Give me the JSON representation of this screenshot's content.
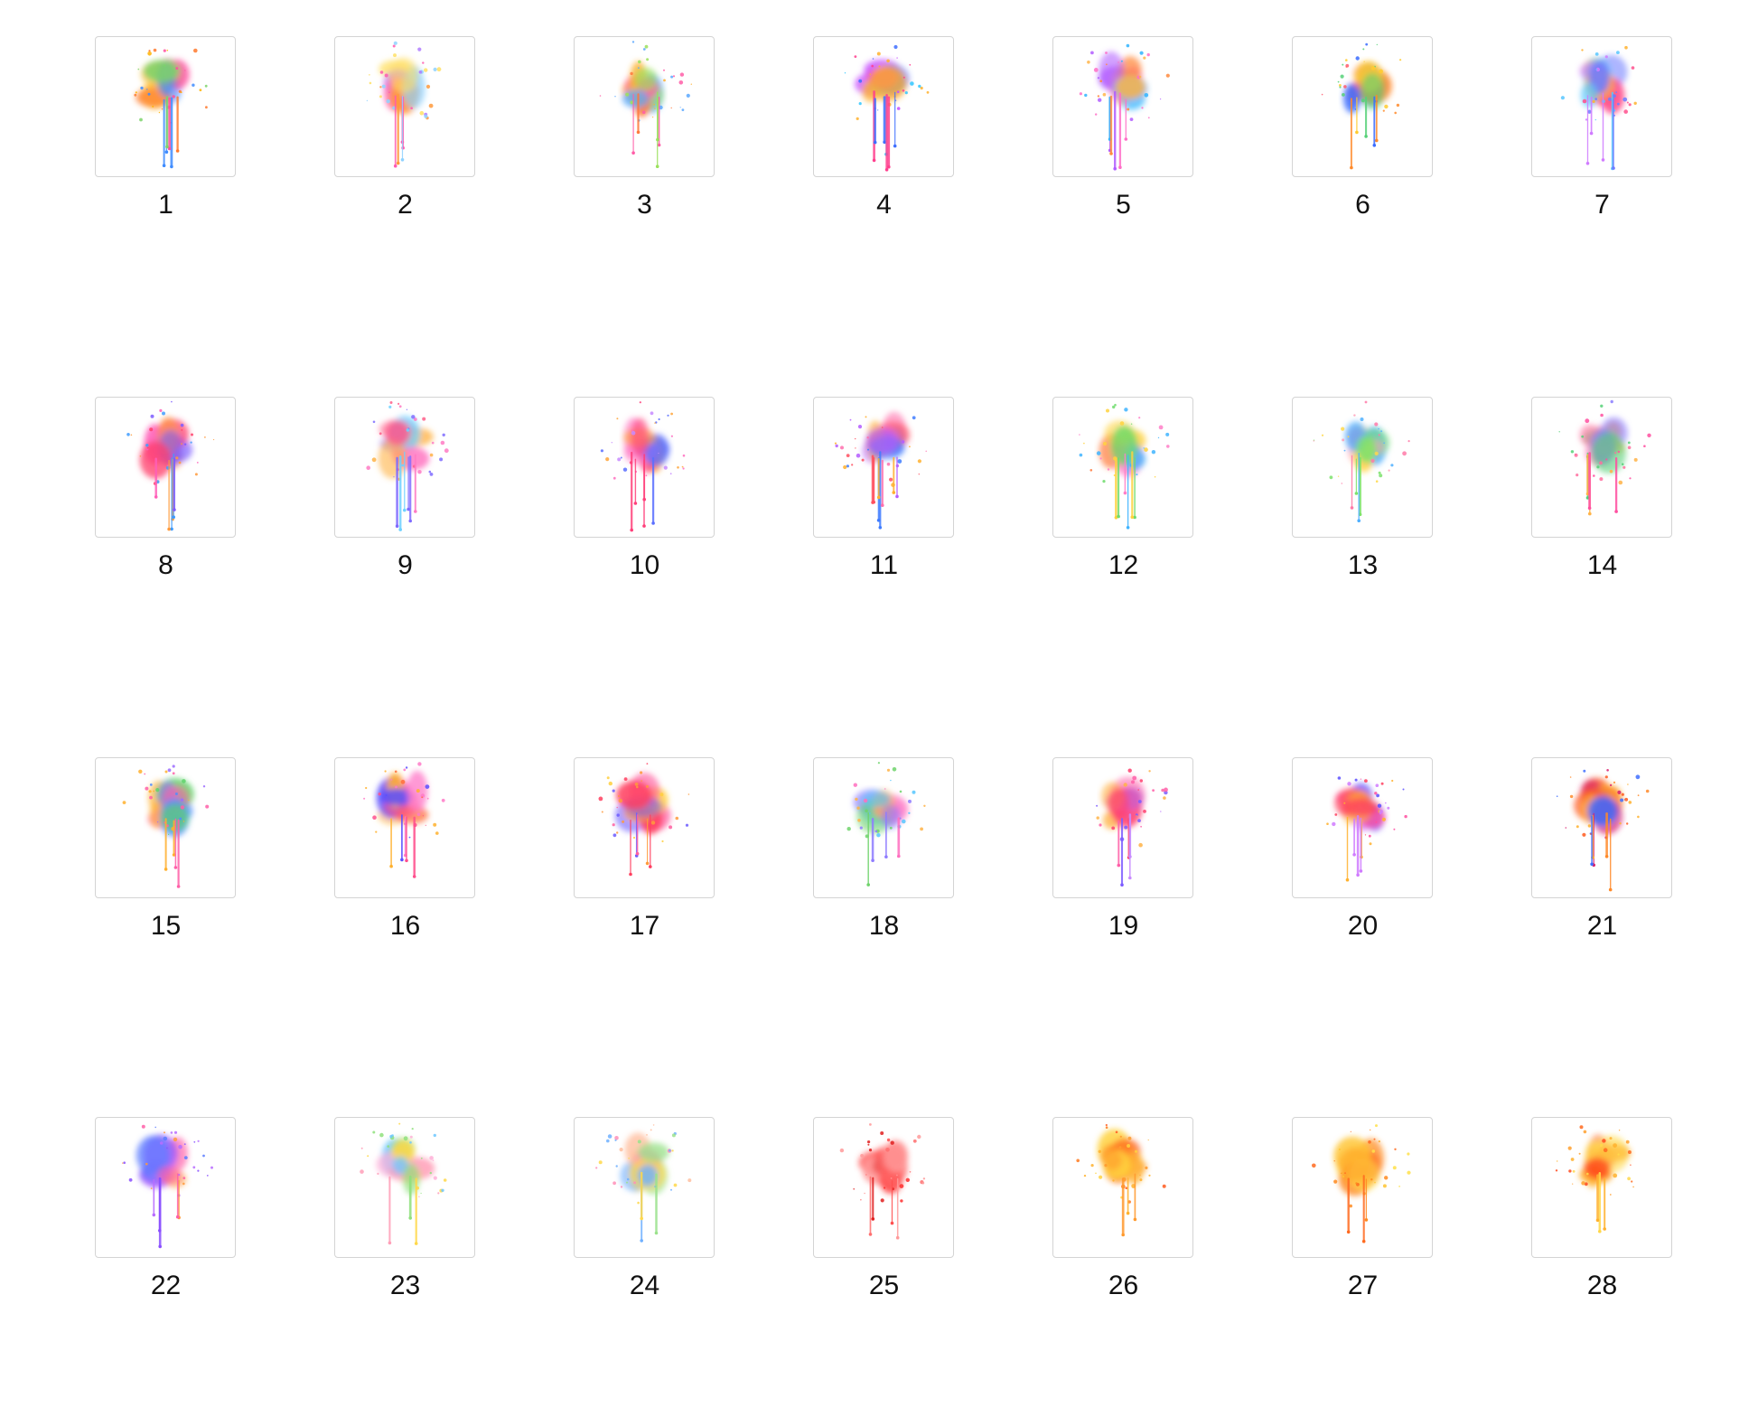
{
  "items": [
    {
      "label": "1",
      "icon": "watercolor-splash-icon",
      "palette": [
        "#ff4fa0",
        "#ffb300",
        "#3f8cff",
        "#7cd36b",
        "#ff7a2e"
      ],
      "drips": 6
    },
    {
      "label": "2",
      "icon": "watercolor-splash-icon",
      "palette": [
        "#ff5bb0",
        "#ff9a3c",
        "#8fd2ff",
        "#ffe066",
        "#b07cff"
      ],
      "drips": 5
    },
    {
      "label": "3",
      "icon": "watercolor-splash-icon",
      "palette": [
        "#ffb02e",
        "#ff5ea8",
        "#5aa8ff",
        "#9be15d",
        "#ff7a3d"
      ],
      "drips": 5
    },
    {
      "label": "4",
      "icon": "watercolor-splash-icon",
      "palette": [
        "#c74dff",
        "#3f6fff",
        "#ff3f8e",
        "#ffb12e",
        "#31c7ff"
      ],
      "drips": 7
    },
    {
      "label": "5",
      "icon": "watercolor-splash-icon",
      "palette": [
        "#ff6fc8",
        "#b15cff",
        "#30b4ff",
        "#ffb54a",
        "#ff8a3d"
      ],
      "drips": 6
    },
    {
      "label": "6",
      "icon": "watercolor-splash-icon",
      "palette": [
        "#ffcb2e",
        "#ff5a6e",
        "#3a6cff",
        "#56d178",
        "#ff8a2a"
      ],
      "drips": 5
    },
    {
      "label": "7",
      "icon": "watercolor-splash-icon",
      "palette": [
        "#ff4f8d",
        "#ffb12e",
        "#6f7cff",
        "#58c7ff",
        "#d07bff"
      ],
      "drips": 5
    },
    {
      "label": "8",
      "icon": "watercolor-splash-icon",
      "palette": [
        "#ff5fb8",
        "#ff9a3c",
        "#7c5cff",
        "#ff3f6c",
        "#3f9cff"
      ],
      "drips": 6
    },
    {
      "label": "9",
      "icon": "watercolor-splash-icon",
      "palette": [
        "#7f6cff",
        "#ff7bc4",
        "#ffb347",
        "#ff5f8a",
        "#6fd1ff"
      ],
      "drips": 6
    },
    {
      "label": "10",
      "icon": "watercolor-splash-icon",
      "palette": [
        "#ff6fc0",
        "#5a6fff",
        "#ffa53a",
        "#ff3f7a",
        "#c88bff"
      ],
      "drips": 5
    },
    {
      "label": "11",
      "icon": "watercolor-splash-icon",
      "palette": [
        "#ff6fae",
        "#ffb02e",
        "#3f7cff",
        "#b45cff",
        "#ff4f5f"
      ],
      "drips": 8
    },
    {
      "label": "12",
      "icon": "watercolor-splash-icon",
      "palette": [
        "#ff7fc8",
        "#ffd23e",
        "#40b4ff",
        "#6fdc6c",
        "#ff7a3d"
      ],
      "drips": 6
    },
    {
      "label": "13",
      "icon": "watercolor-splash-icon",
      "palette": [
        "#ff9fb8",
        "#ffd84a",
        "#4fb0ff",
        "#7ce26c",
        "#ff7aa8"
      ],
      "drips": 4
    },
    {
      "label": "14",
      "icon": "watercolor-splash-icon",
      "palette": [
        "#ff6f9f",
        "#ffb347",
        "#8a7cff",
        "#56d178",
        "#ff4fa0"
      ],
      "drips": 5
    },
    {
      "label": "15",
      "icon": "watercolor-splash-icon",
      "palette": [
        "#ffb02e",
        "#ff5fa8",
        "#4f8cff",
        "#5fd36b",
        "#9c6cff"
      ],
      "drips": 4
    },
    {
      "label": "16",
      "icon": "watercolor-splash-icon",
      "palette": [
        "#ff4f8d",
        "#ffb12e",
        "#5a4fff",
        "#ff7ac8",
        "#ff6f3a"
      ],
      "drips": 5
    },
    {
      "label": "17",
      "icon": "watercolor-splash-icon",
      "palette": [
        "#ff5fa0",
        "#ff9a3c",
        "#6c5cff",
        "#ff3f5f",
        "#ffcf3e"
      ],
      "drips": 5
    },
    {
      "label": "18",
      "icon": "watercolor-splash-icon",
      "palette": [
        "#ff6fc0",
        "#ffb347",
        "#8f7cff",
        "#56c7ff",
        "#6fd36b"
      ],
      "drips": 4
    },
    {
      "label": "19",
      "icon": "watercolor-splash-icon",
      "palette": [
        "#7c5cff",
        "#ff5fa8",
        "#ffb347",
        "#ff3f6f",
        "#c88bff"
      ],
      "drips": 5
    },
    {
      "label": "20",
      "icon": "watercolor-splash-icon",
      "palette": [
        "#5a4fff",
        "#ff4fa0",
        "#ffb12e",
        "#ff3f5f",
        "#d07bff"
      ],
      "drips": 5
    },
    {
      "label": "21",
      "icon": "watercolor-splash-icon",
      "palette": [
        "#ff5a1f",
        "#ffb12e",
        "#d81f6c",
        "#3f6fff",
        "#ff8a2a"
      ],
      "drips": 5
    },
    {
      "label": "22",
      "icon": "watercolor-splash-icon",
      "palette": [
        "#8a4fff",
        "#b86cff",
        "#5a7cff",
        "#ff5fa8",
        "#ff9a3c"
      ],
      "drips": 5
    },
    {
      "label": "23",
      "icon": "watercolor-splash-icon",
      "palette": [
        "#ff9fb8",
        "#ffd84a",
        "#6fc8ff",
        "#8fe07c",
        "#ffb0d8"
      ],
      "drips": 3
    },
    {
      "label": "24",
      "icon": "watercolor-splash-icon",
      "palette": [
        "#ff8fb8",
        "#ffd84a",
        "#6fb0ff",
        "#9be28c",
        "#ffc0a0"
      ],
      "drips": 3
    },
    {
      "label": "25",
      "icon": "watercolor-splash-icon",
      "palette": [
        "#ff2e2e",
        "#ff6f6f",
        "#ff4f4f",
        "#ff9a9a",
        "#e01f1f"
      ],
      "drips": 4
    },
    {
      "label": "26",
      "icon": "watercolor-splash-icon",
      "palette": [
        "#ffb12e",
        "#ff7a1f",
        "#ffd23e",
        "#ff9a2e",
        "#ff5a1f"
      ],
      "drips": 3
    },
    {
      "label": "27",
      "icon": "watercolor-splash-icon",
      "palette": [
        "#ffc42e",
        "#ff8a1f",
        "#ffe04a",
        "#ffab2e",
        "#ff6a1f"
      ],
      "drips": 3
    },
    {
      "label": "28",
      "icon": "watercolor-splash-icon",
      "palette": [
        "#ffb12e",
        "#ff6a1f",
        "#ffd84a",
        "#ff4a1f",
        "#ffa02e"
      ],
      "drips": 3
    }
  ]
}
